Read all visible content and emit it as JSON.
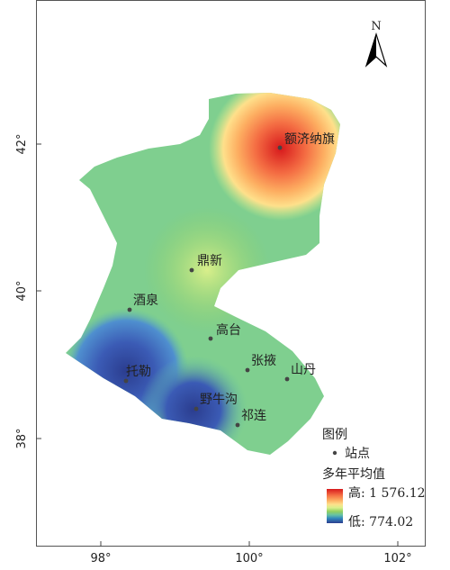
{
  "north_label": "N",
  "stations": [
    {
      "name": "额济纳旗"
    },
    {
      "name": "鼎新"
    },
    {
      "name": "酒泉"
    },
    {
      "name": "高台"
    },
    {
      "name": "张掖"
    },
    {
      "name": "山丹"
    },
    {
      "name": "托勒"
    },
    {
      "name": "野牛沟"
    },
    {
      "name": "祁连"
    }
  ],
  "axes": {
    "x_ticks": [
      "98°",
      "100°",
      "102°"
    ],
    "y_ticks": [
      "42°",
      "40°",
      "38°"
    ]
  },
  "legend": {
    "title": "图例",
    "station_label": "站点",
    "ramp_title": "多年平均值",
    "high_label": "高: 1 576.12",
    "low_label": "低: 774.02",
    "ramp_colors": [
      "#d7191c",
      "#f46d43",
      "#fdae61",
      "#fee08b",
      "#d9ef8b",
      "#91cf60",
      "#66c2a5",
      "#3288bd",
      "#2c4fa8",
      "#2b3d8f"
    ]
  }
}
